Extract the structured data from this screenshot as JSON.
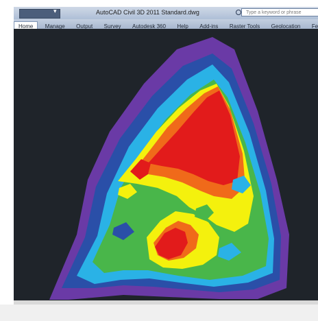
{
  "window": {
    "title": "AutoCAD Civil 3D 2011  Standard.dwg",
    "search_placeholder": "Type a keyword or phrase"
  },
  "tabs": [
    {
      "label": "Home",
      "active": true
    },
    {
      "label": "Manage"
    },
    {
      "label": "Output"
    },
    {
      "label": "Survey"
    },
    {
      "label": "Autodesk 360"
    },
    {
      "label": "Help"
    },
    {
      "label": "Add-ins"
    },
    {
      "label": "Raster Tools"
    },
    {
      "label": "Geolocation"
    },
    {
      "label": "Featured"
    }
  ],
  "colors": {
    "canvas_bg": "#1f242a",
    "violet": "#6a3aa6",
    "blue": "#2a4fa8",
    "cyan": "#2ab2e6",
    "green": "#49b64a",
    "yellow": "#f4f10d",
    "orange": "#f06a1a",
    "red": "#e21b1b"
  },
  "icons": {
    "quick_access": "quick-access-toolbar-icon",
    "dropdown": "chevron-down-icon",
    "search": "search-icon"
  }
}
